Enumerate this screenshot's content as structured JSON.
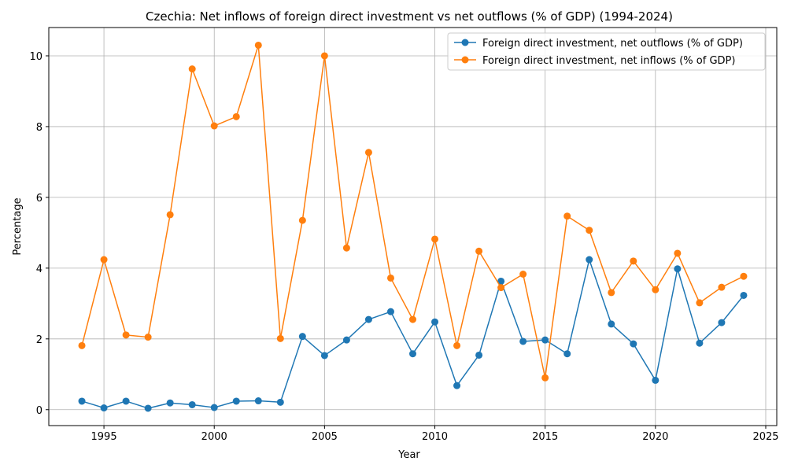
{
  "chart_data": {
    "type": "line",
    "title": "Czechia: Net inflows of foreign direct investment vs net outflows (% of GDP) (1994-2024)",
    "xlabel": "Year",
    "ylabel": "Percentage",
    "xlim": [
      1992.5,
      2025.5
    ],
    "ylim": [
      -0.45,
      10.8
    ],
    "xticks": [
      1995,
      2000,
      2005,
      2010,
      2015,
      2020,
      2025
    ],
    "yticks": [
      0,
      2,
      4,
      6,
      8,
      10
    ],
    "grid": true,
    "legend_position": "top-right",
    "x": [
      1994,
      1995,
      1996,
      1997,
      1998,
      1999,
      2000,
      2001,
      2002,
      2003,
      2004,
      2005,
      2006,
      2007,
      2008,
      2009,
      2010,
      2011,
      2012,
      2013,
      2014,
      2015,
      2016,
      2017,
      2018,
      2019,
      2020,
      2021,
      2022,
      2023,
      2024
    ],
    "series": [
      {
        "name": "Foreign direct investment, net outflows (% of GDP)",
        "color": "#1f77b4",
        "values": [
          0.24,
          0.05,
          0.24,
          0.04,
          0.19,
          0.14,
          0.06,
          0.24,
          0.25,
          0.21,
          2.07,
          1.53,
          1.97,
          2.55,
          2.77,
          1.58,
          2.48,
          0.68,
          1.54,
          3.63,
          1.93,
          1.97,
          1.58,
          4.24,
          2.42,
          1.86,
          0.83,
          3.98,
          1.88,
          2.46,
          3.23
        ]
      },
      {
        "name": "Foreign direct investment, net inflows (% of GDP)",
        "color": "#ff7f0e",
        "values": [
          1.81,
          4.24,
          2.11,
          2.05,
          5.51,
          9.63,
          8.02,
          8.28,
          10.3,
          2.01,
          5.35,
          10.0,
          4.57,
          7.27,
          3.72,
          2.55,
          4.82,
          1.81,
          4.48,
          3.45,
          3.83,
          0.9,
          5.47,
          5.07,
          3.31,
          4.2,
          3.39,
          4.42,
          3.02,
          3.46,
          3.77
        ]
      }
    ]
  }
}
